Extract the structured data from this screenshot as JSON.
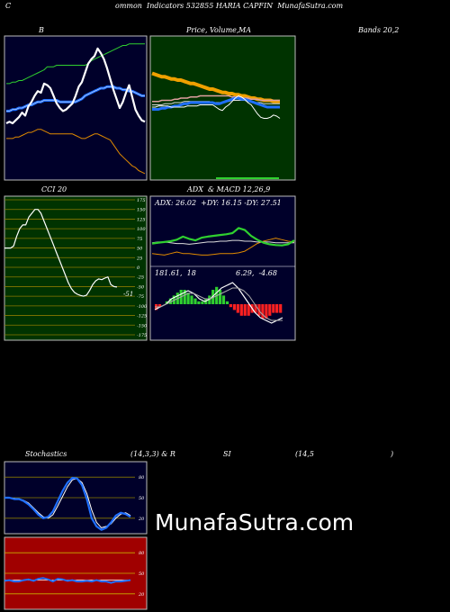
{
  "header": {
    "c_letter": "C",
    "title": "ommon  Indicators 532855 HARIA CAPFIN  MunafaSutra.com"
  },
  "labels": {
    "bb_title": "B",
    "price_vol_ma_a": "Price,",
    "price_vol_ma_b": "Volume,",
    "price_vol_ma_c": "MA",
    "bands": "Bands 20,2",
    "cci": "CCI 20",
    "adx_macd": "ADX  & MACD 12,26,9",
    "adx_values": "ADX: 26.02  +DY: 16.15 -DY: 27.51",
    "macd_left": "181.61,  18",
    "macd_right": "6.29,  -4.68",
    "stoch_a": "Stochastics",
    "stoch_b": "(14,3,3) & R",
    "stoch_c": "SI",
    "stoch_d": "(14,5",
    "stoch_e": ")",
    "cci_end": "-51",
    "watermark": "MunafaSutra.com"
  },
  "colors": {
    "bg": "#000000",
    "navy": "#00002a",
    "darkgreen": "#003300",
    "rsi_red": "#a00000",
    "blue": "#1f6fff",
    "green": "#2fd02f",
    "orange": "#e08a00",
    "grid_olive": "#8a7a00"
  },
  "chart_data": [
    {
      "type": "line",
      "title": "B",
      "series": [
        {
          "role": "price",
          "values": [
            4,
            5,
            4,
            6,
            8,
            11,
            9,
            15,
            18,
            22,
            25,
            24,
            30,
            29,
            27,
            22,
            17,
            14,
            12,
            13,
            15,
            17,
            22,
            28,
            31,
            37,
            43,
            46,
            48,
            53,
            50,
            46,
            40,
            33,
            26,
            20,
            14,
            18,
            24,
            29,
            21,
            13,
            9,
            6,
            5
          ]
        },
        {
          "role": "upper band",
          "values": [
            30,
            30,
            31,
            31,
            32,
            32,
            33,
            34,
            35,
            36,
            37,
            38,
            39,
            41,
            41,
            41,
            42,
            42,
            42,
            42,
            42,
            42,
            42,
            42,
            42,
            42,
            43,
            45,
            46,
            47,
            48,
            49,
            50,
            51,
            52,
            53,
            54,
            55,
            55,
            56,
            56,
            56,
            56,
            56,
            56
          ]
        },
        {
          "role": "middle band",
          "values": [
            12,
            12,
            13,
            13,
            14,
            14,
            15,
            16,
            16,
            17,
            18,
            18,
            19,
            19,
            19,
            19,
            19,
            18,
            18,
            18,
            18,
            18,
            18,
            19,
            20,
            22,
            23,
            24,
            25,
            26,
            27,
            27,
            28,
            28,
            28,
            27,
            27,
            26,
            26,
            25,
            25,
            24,
            23,
            22,
            22
          ]
        },
        {
          "role": "lower band",
          "values": [
            -6,
            -6,
            -6,
            -5,
            -5,
            -4,
            -3,
            -2,
            -2,
            -1,
            0,
            0,
            -1,
            -2,
            -3,
            -3,
            -3,
            -3,
            -3,
            -3,
            -3,
            -3,
            -4,
            -5,
            -6,
            -6,
            -5,
            -4,
            -3,
            -3,
            -4,
            -5,
            -6,
            -7,
            -10,
            -13,
            -16,
            -18,
            -20,
            -22,
            -24,
            -25,
            -27,
            -28,
            -29
          ]
        }
      ]
    },
    {
      "type": "line",
      "title": "Price, Volume, MA",
      "series": [
        {
          "role": "price",
          "values": [
            40,
            40,
            41,
            41,
            41,
            41,
            40,
            40,
            40,
            40,
            40,
            41,
            41,
            41,
            41,
            42,
            42,
            42,
            42,
            42,
            40,
            38,
            37,
            40,
            42,
            45,
            48,
            50,
            49,
            47,
            44,
            42,
            38,
            34,
            31,
            30,
            30,
            31,
            33,
            32,
            30
          ]
        },
        {
          "role": "ma orange",
          "values": [
            70,
            69,
            68,
            67,
            67,
            66,
            65,
            65,
            64,
            64,
            63,
            62,
            61,
            61,
            60,
            59,
            58,
            57,
            56,
            56,
            55,
            54,
            53,
            53,
            52,
            52,
            51,
            51,
            50,
            50,
            49,
            48,
            48,
            47,
            47,
            46,
            46,
            46,
            45,
            45,
            45
          ]
        },
        {
          "role": "ma pink",
          "values": [
            45,
            45,
            45,
            46,
            46,
            46,
            46,
            47,
            47,
            48,
            48,
            48,
            49,
            49,
            49,
            50,
            50,
            50,
            50,
            50,
            50,
            50,
            50,
            50,
            50,
            49,
            49,
            49,
            48,
            48,
            48,
            47,
            47,
            47,
            46,
            46,
            46,
            46,
            46,
            46,
            46
          ]
        },
        {
          "role": "ma blue",
          "values": [
            38,
            38,
            38,
            39,
            39,
            40,
            40,
            41,
            41,
            42,
            43,
            43,
            44,
            44,
            44,
            44,
            44,
            44,
            44,
            44,
            43,
            43,
            44,
            45,
            46,
            47,
            48,
            48,
            47,
            47,
            46,
            45,
            44,
            43,
            42,
            41,
            40,
            40,
            40,
            40,
            40
          ]
        },
        {
          "role": "ma white",
          "values": [
            42,
            42,
            42,
            42,
            43,
            43,
            43,
            44,
            44,
            44,
            45,
            45,
            45,
            45,
            45,
            45,
            45,
            45,
            45,
            44,
            44,
            44,
            44,
            45,
            45,
            46,
            46,
            46,
            46,
            46,
            45,
            45,
            44,
            44,
            44,
            43,
            43,
            43,
            43,
            43,
            43
          ]
        }
      ],
      "volume": [
        0,
        0,
        0,
        0,
        0,
        0,
        0,
        0,
        0,
        0,
        0,
        0,
        0,
        0,
        0,
        0,
        0,
        0,
        0,
        0,
        0,
        0,
        0,
        0,
        0,
        0,
        0,
        0,
        0,
        0,
        0,
        0,
        0,
        0,
        0,
        0,
        0,
        0,
        0,
        0,
        0
      ]
    },
    {
      "type": "line",
      "title": "CCI 20",
      "ylim": [
        -175,
        175
      ],
      "yticks": [
        175,
        150,
        125,
        100,
        75,
        50,
        25,
        0,
        -25,
        -50,
        -75,
        -100,
        -125,
        -150,
        -175
      ],
      "series": [
        {
          "role": "cci",
          "values": [
            50,
            50,
            50,
            55,
            80,
            100,
            110,
            110,
            130,
            140,
            150,
            150,
            140,
            120,
            100,
            80,
            60,
            40,
            20,
            0,
            -20,
            -40,
            -55,
            -65,
            -70,
            -73,
            -75,
            -72,
            -60,
            -45,
            -35,
            -30,
            -32,
            -28,
            -25,
            -45,
            -50,
            -51
          ]
        }
      ]
    },
    {
      "type": "line",
      "title": "ADX & MACD 12,26,9",
      "series": [
        {
          "role": "adx",
          "values": [
            26,
            27,
            27,
            26,
            25,
            25,
            24,
            25,
            26,
            27,
            27,
            28,
            28,
            29,
            29,
            28,
            28,
            27,
            27,
            27,
            26,
            26,
            26,
            26
          ]
        },
        {
          "role": "plus_di",
          "values": [
            20,
            22,
            24,
            26,
            30,
            38,
            32,
            28,
            35,
            38,
            40,
            42,
            44,
            47,
            60,
            55,
            40,
            30,
            22,
            18,
            16,
            15,
            18,
            28
          ]
        },
        {
          "role": "minus_di",
          "values": [
            12,
            11,
            10,
            12,
            14,
            12,
            12,
            11,
            10,
            10,
            11,
            12,
            12,
            12,
            13,
            15,
            20,
            25,
            28,
            30,
            32,
            30,
            28,
            27
          ]
        }
      ],
      "macd": [
        -2,
        -1,
        0,
        2,
        3,
        4,
        5,
        4,
        2,
        1,
        2,
        4,
        6,
        7,
        8,
        6,
        3,
        0,
        -3,
        -5,
        -6,
        -7,
        -6,
        -5
      ],
      "signal": [
        -1,
        -1,
        0,
        1,
        2,
        3,
        4,
        4,
        3,
        2,
        2,
        3,
        4,
        5,
        6,
        6,
        5,
        3,
        0,
        -3,
        -5,
        -6,
        -6,
        -6
      ],
      "histogram": [
        -2,
        -1,
        0,
        1,
        2,
        3,
        4,
        5,
        5,
        4,
        3,
        2,
        1,
        1,
        2,
        3,
        5,
        6,
        5,
        3,
        1,
        -1,
        -2,
        -3,
        -4,
        -4,
        -4,
        -3,
        -3,
        -4,
        -5,
        -5,
        -4,
        -3,
        -3,
        -3
      ]
    },
    {
      "type": "line",
      "title": "Stochastics (14,3,3)",
      "yticks": [
        80,
        50,
        20
      ],
      "series": [
        {
          "role": "%K",
          "values": [
            50,
            50,
            48,
            48,
            45,
            40,
            33,
            25,
            20,
            22,
            30,
            45,
            60,
            72,
            79,
            78,
            68,
            48,
            20,
            8,
            3,
            6,
            14,
            24,
            28,
            26,
            22
          ]
        },
        {
          "role": "%D",
          "values": [
            50,
            50,
            49,
            48,
            46,
            42,
            35,
            28,
            22,
            20,
            25,
            38,
            52,
            66,
            76,
            78,
            72,
            56,
            32,
            14,
            6,
            8,
            12,
            20,
            26,
            28,
            24
          ]
        }
      ]
    },
    {
      "type": "line",
      "title": "RSI (14,5)",
      "yticks": [
        80,
        50,
        20
      ],
      "series": [
        {
          "role": "rsi",
          "values": [
            39,
            40,
            38,
            38,
            40,
            41,
            39,
            42,
            43,
            41,
            38,
            42,
            41,
            39,
            40,
            38,
            38,
            39,
            38,
            40,
            38,
            38,
            36,
            38,
            38,
            39,
            40
          ]
        },
        {
          "role": "rsi average",
          "values": [
            40,
            40,
            40,
            40,
            40,
            40,
            40,
            40,
            40,
            40,
            40,
            40,
            40,
            40,
            40,
            40,
            40,
            40,
            40,
            40,
            40,
            40,
            40,
            40,
            40,
            40,
            40
          ]
        }
      ]
    }
  ]
}
